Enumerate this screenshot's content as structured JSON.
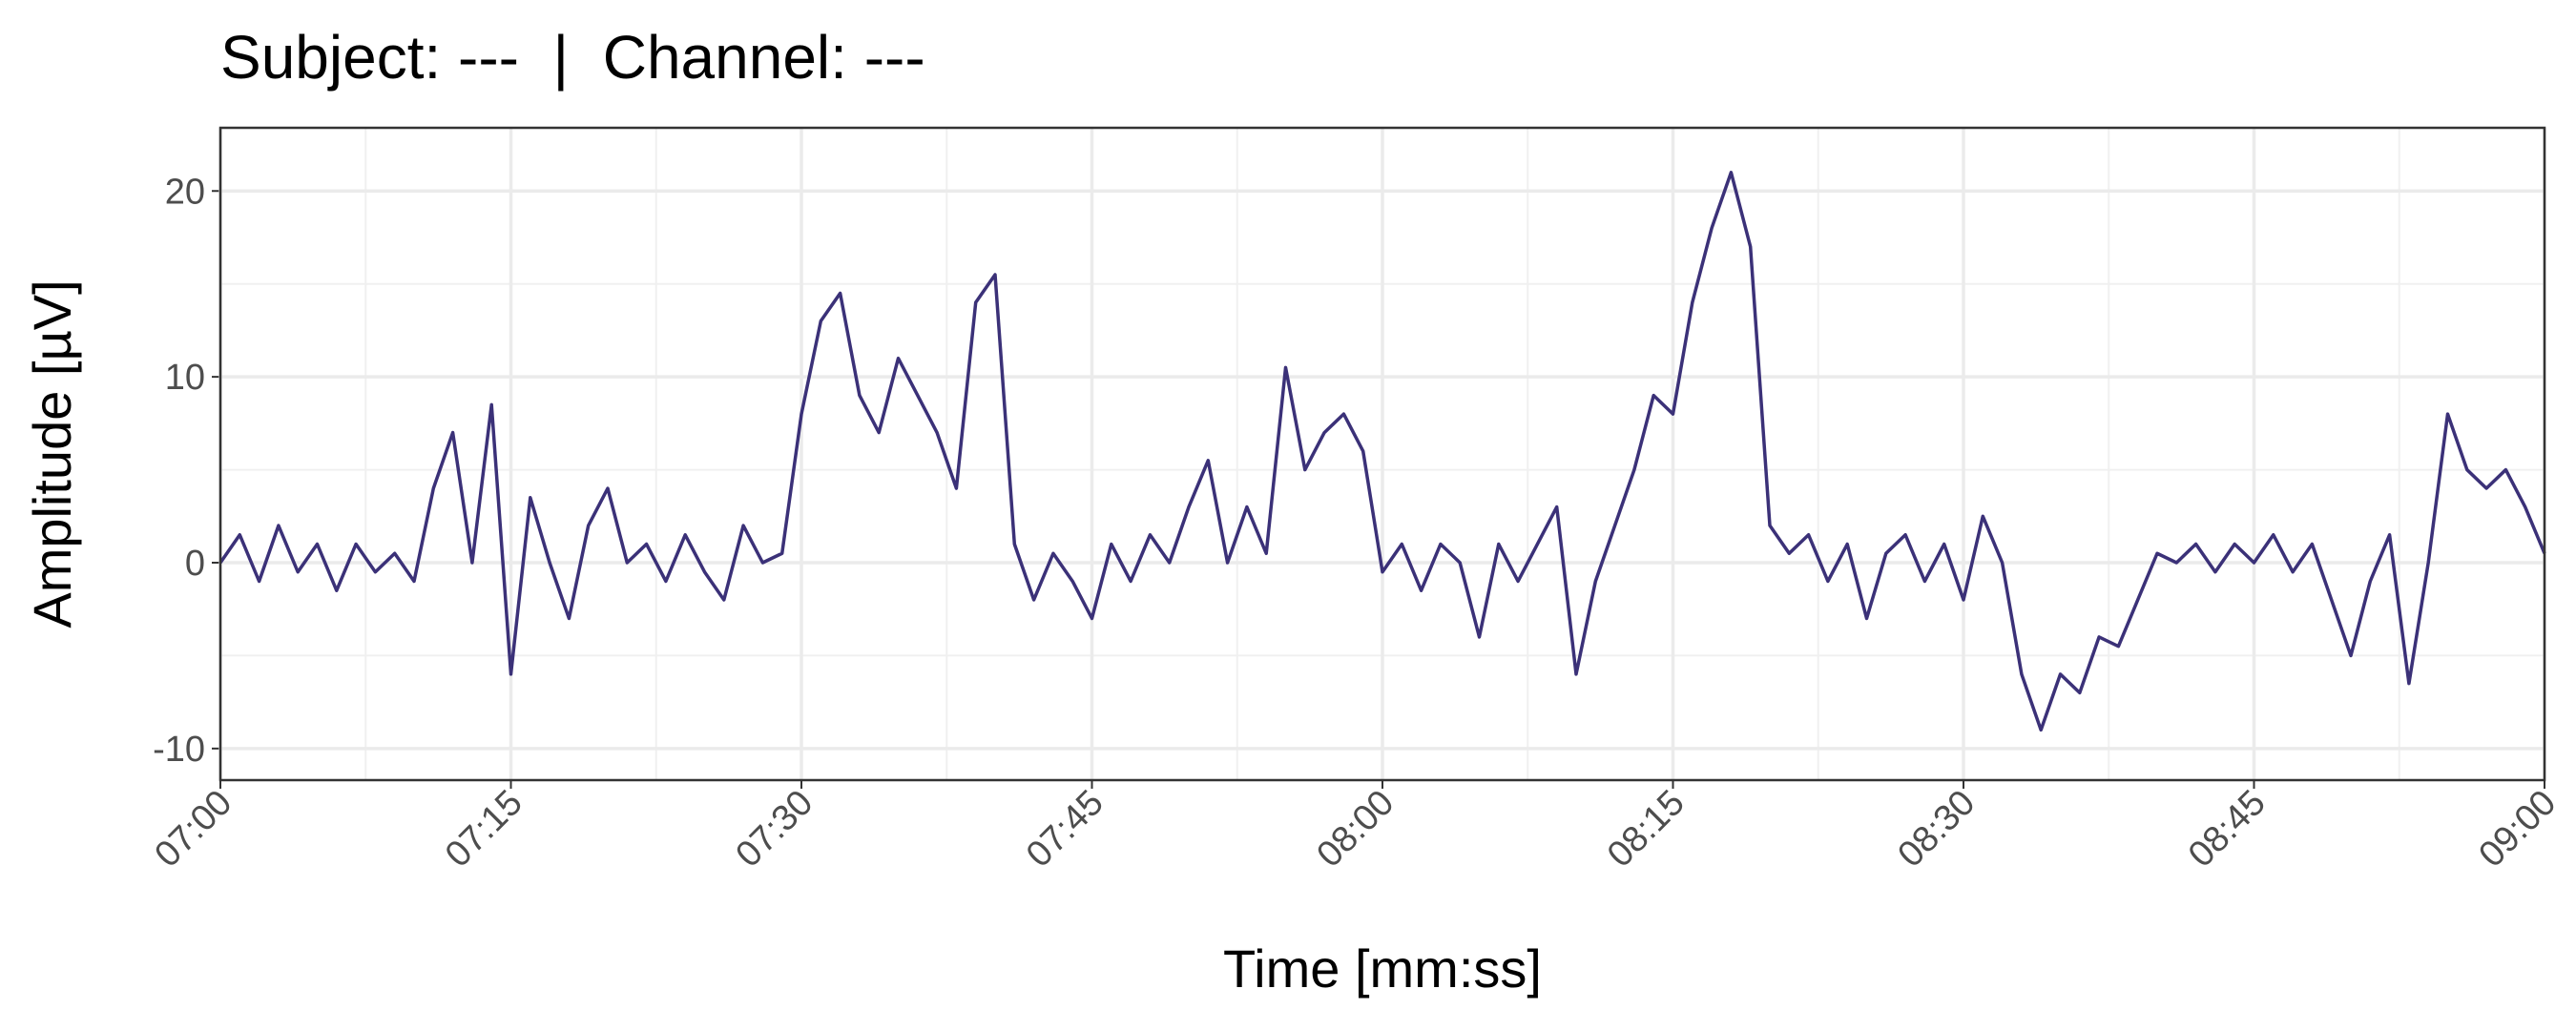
{
  "chart_data": {
    "type": "line",
    "title": "Subject: ---  |  Channel: ---",
    "x_label": "Time [mm:ss]",
    "y_label": "Amplitude [µV]",
    "grid": true,
    "xlim": [
      420,
      540
    ],
    "ylim": [
      -11.7,
      23.4
    ],
    "xticks": [
      {
        "value": 420,
        "label": "07:00"
      },
      {
        "value": 435,
        "label": "07:15"
      },
      {
        "value": 450,
        "label": "07:30"
      },
      {
        "value": 465,
        "label": "07:45"
      },
      {
        "value": 480,
        "label": "08:00"
      },
      {
        "value": 495,
        "label": "08:15"
      },
      {
        "value": 510,
        "label": "08:30"
      },
      {
        "value": 525,
        "label": "08:45"
      },
      {
        "value": 540,
        "label": "09:00"
      }
    ],
    "yticks": [
      -10,
      0,
      10,
      20
    ],
    "x": [
      420,
      421,
      422,
      423,
      424,
      425,
      426,
      427,
      428,
      429,
      430,
      431,
      432,
      433,
      434,
      435,
      436,
      437,
      438,
      439,
      440,
      441,
      442,
      443,
      444,
      445,
      446,
      447,
      448,
      449,
      450,
      451,
      452,
      453,
      454,
      455,
      456,
      457,
      458,
      459,
      460,
      461,
      462,
      463,
      464,
      465,
      466,
      467,
      468,
      469,
      470,
      471,
      472,
      473,
      474,
      475,
      476,
      477,
      478,
      479,
      480,
      481,
      482,
      483,
      484,
      485,
      486,
      487,
      488,
      489,
      490,
      491,
      492,
      493,
      494,
      495,
      496,
      497,
      498,
      499,
      500,
      501,
      502,
      503,
      504,
      505,
      506,
      507,
      508,
      509,
      510,
      511,
      512,
      513,
      514,
      515,
      516,
      517,
      518,
      519,
      520,
      521,
      522,
      523,
      524,
      525,
      526,
      527,
      528,
      529,
      530,
      531,
      532,
      533,
      534,
      535,
      536,
      537,
      538,
      539,
      540
    ],
    "series": [
      {
        "color": "#3b3178",
        "values": [
          0,
          1.5,
          -1,
          2,
          -0.5,
          1,
          -1.5,
          1,
          -0.5,
          0.5,
          -1,
          4,
          7,
          0,
          8.5,
          -6,
          3.5,
          0,
          -3,
          2,
          4,
          0,
          1,
          -1,
          1.5,
          -0.5,
          -2,
          2,
          0,
          0.5,
          8,
          13,
          14.5,
          9,
          7,
          11,
          9,
          7,
          4,
          14,
          15.5,
          1,
          -2,
          0.5,
          -1,
          -3,
          1,
          -1,
          1.5,
          0,
          3,
          5.5,
          0,
          3,
          0.5,
          10.5,
          5,
          7,
          8,
          6,
          -0.5,
          1,
          -1.5,
          1,
          0,
          -4,
          1,
          -1,
          1,
          3,
          -6,
          -1,
          2,
          5,
          9,
          8,
          14,
          18,
          21,
          17,
          2,
          0.5,
          1.5,
          -1,
          1,
          -3,
          0.5,
          1.5,
          -1,
          1,
          -2,
          2.5,
          0,
          -6,
          -9,
          -6,
          -7,
          -4,
          -4.5,
          -2,
          0.5,
          0,
          1,
          -0.5,
          1,
          0,
          1.5,
          -0.5,
          1,
          -2,
          -5,
          -1,
          1.5,
          -6.5,
          0,
          8,
          5,
          4,
          5,
          3,
          0.5
        ]
      }
    ]
  }
}
